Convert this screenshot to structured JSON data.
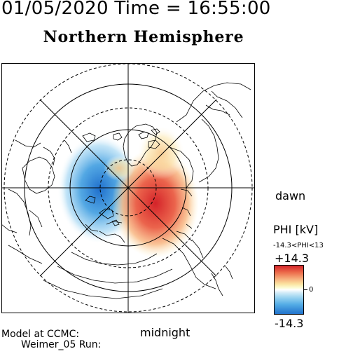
{
  "header": {
    "date_time": "01/05/2020 Time = 16:55:00",
    "title": "Northern Hemisphere"
  },
  "map": {
    "dawn_label": "dawn",
    "midnight_label": "midnight",
    "projection": "polar stereographic (north)",
    "potential_cells": [
      {
        "name": "dusk cell",
        "sign": "negative",
        "color": "#2173cc"
      },
      {
        "name": "dawn cell",
        "sign": "positive",
        "color": "#d5252b"
      }
    ]
  },
  "footer": {
    "line1": "Model at CCMC:",
    "line2": "Weimer_05 Run:"
  },
  "colorbar": {
    "title": "PHI [kV]",
    "range_text": "-14.3<PHI<13",
    "max_label": "+14.3",
    "min_label": "-14.3",
    "zero_label": "0",
    "max_color": "#d5252b",
    "zero_color": "#ffffff",
    "min_color": "#2173cc"
  }
}
